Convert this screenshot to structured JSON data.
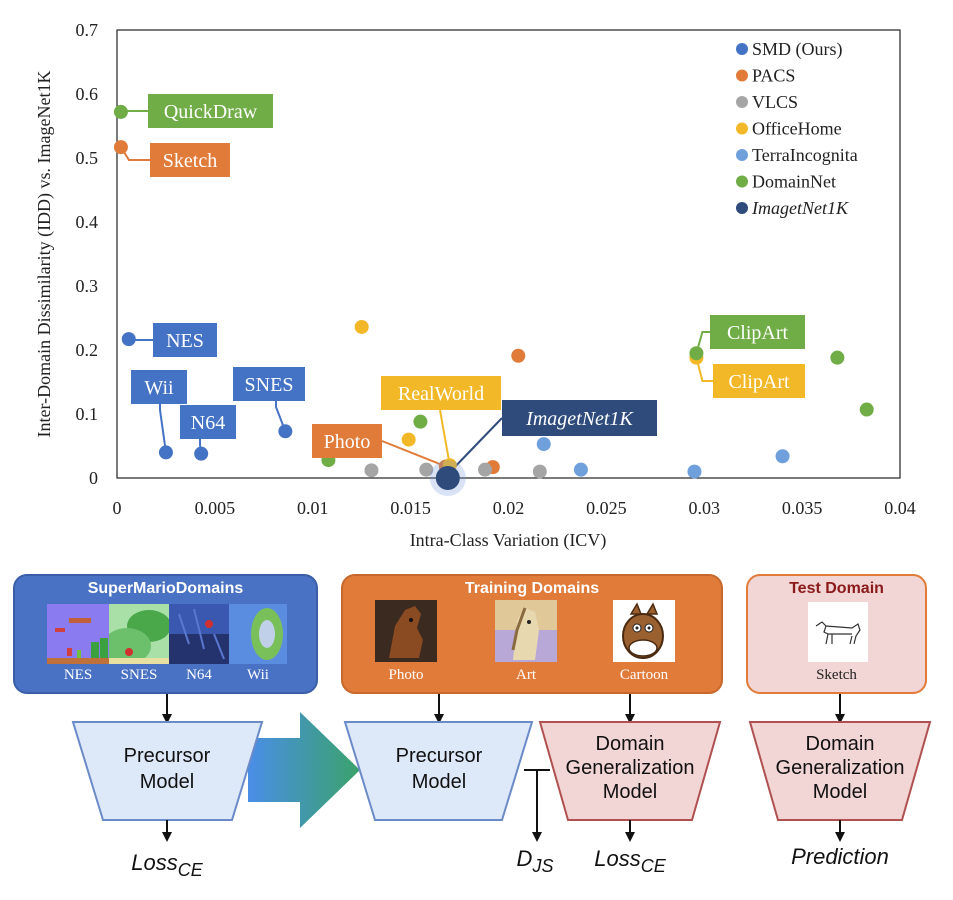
{
  "chart_data": {
    "type": "scatter",
    "xlabel": "Intra-Class Variation (ICV)",
    "ylabel": "Inter-Domain Dissimilarity (IDD) vs. ImageNet1K",
    "xlim": [
      0,
      0.04
    ],
    "ylim": [
      0,
      0.7
    ],
    "x_ticks": [
      0,
      0.005,
      0.01,
      0.015,
      0.02,
      0.025,
      0.03,
      0.035,
      0.04
    ],
    "x_tick_labels": [
      "0",
      "0.005",
      "0.01",
      "0.015",
      "0.02",
      "0.025",
      "0.03",
      "0.035",
      "0.04"
    ],
    "y_ticks": [
      0,
      0.1,
      0.2,
      0.3,
      0.4,
      0.5,
      0.6,
      0.7
    ],
    "y_tick_labels": [
      "0",
      "0.1",
      "0.2",
      "0.3",
      "0.4",
      "0.5",
      "0.6",
      "0.7"
    ],
    "grid": false,
    "legend_position": "top-right",
    "series": [
      {
        "name": "SMD (Ours)",
        "color": "#4472c4",
        "points": [
          [
            0.0006,
            0.217
          ],
          [
            0.0025,
            0.04
          ],
          [
            0.0043,
            0.038
          ],
          [
            0.0086,
            0.073
          ]
        ]
      },
      {
        "name": "PACS",
        "color": "#e07b39",
        "points": [
          [
            0.0002,
            0.517
          ],
          [
            0.0168,
            0.018
          ],
          [
            0.0192,
            0.017
          ],
          [
            0.0205,
            0.191
          ]
        ]
      },
      {
        "name": "VLCS",
        "color": "#a5a5a5",
        "points": [
          [
            0.013,
            0.012
          ],
          [
            0.0158,
            0.013
          ],
          [
            0.0188,
            0.013
          ],
          [
            0.0216,
            0.01
          ]
        ]
      },
      {
        "name": "OfficeHome",
        "color": "#f2b827",
        "points": [
          [
            0.0125,
            0.236
          ],
          [
            0.0149,
            0.06
          ],
          [
            0.017,
            0.02
          ],
          [
            0.0296,
            0.188
          ]
        ]
      },
      {
        "name": "TerraIncognita",
        "color": "#6fa0dc",
        "points": [
          [
            0.0218,
            0.053
          ],
          [
            0.0237,
            0.013
          ],
          [
            0.0295,
            0.01
          ],
          [
            0.034,
            0.034
          ]
        ]
      },
      {
        "name": "DomainNet",
        "color": "#70ad47",
        "points": [
          [
            0.0002,
            0.572
          ],
          [
            0.0108,
            0.028
          ],
          [
            0.0155,
            0.088
          ],
          [
            0.0296,
            0.195
          ],
          [
            0.0368,
            0.188
          ],
          [
            0.0383,
            0.107
          ]
        ]
      },
      {
        "name": "ImagetNet1K",
        "color": "#2e4b7c",
        "points": [
          [
            0.0169,
            0.0
          ]
        ]
      }
    ],
    "annotations": [
      {
        "text": "QuickDraw",
        "color": "#70ad47"
      },
      {
        "text": "Sketch",
        "color": "#e07b39"
      },
      {
        "text": "NES",
        "color": "#4472c4"
      },
      {
        "text": "Wii",
        "color": "#4472c4"
      },
      {
        "text": "N64",
        "color": "#4472c4"
      },
      {
        "text": "SNES",
        "color": "#4472c4"
      },
      {
        "text": "Photo",
        "color": "#e07b39"
      },
      {
        "text": "RealWorld",
        "color": "#f2b827"
      },
      {
        "text": "ImagetNet1K",
        "color": "#2e4b7c"
      },
      {
        "text": "ClipArt",
        "color": "#70ad47"
      },
      {
        "text": "ClipArt",
        "color": "#f2b827"
      }
    ]
  },
  "diagram": {
    "smd": {
      "title": "SuperMarioDomains",
      "labels": [
        "NES",
        "SNES",
        "N64",
        "Wii"
      ]
    },
    "training": {
      "title": "Training Domains",
      "labels": [
        "Photo",
        "Art",
        "Cartoon"
      ]
    },
    "test": {
      "title": "Test Domain",
      "labels": [
        "Sketch"
      ]
    },
    "models": {
      "precursor_1": [
        "Precursor",
        "Model"
      ],
      "precursor_2": [
        "Precursor",
        "Model"
      ],
      "dg_1": [
        "Domain",
        "Generalization",
        "Model"
      ],
      "dg_2": [
        "Domain",
        "Generalization",
        "Model"
      ]
    },
    "outputs": {
      "loss_ce_left": {
        "main": "Loss",
        "sub": "CE"
      },
      "djs": {
        "main": "D",
        "sub": "JS"
      },
      "loss_ce_right": {
        "main": "Loss",
        "sub": "CE"
      },
      "prediction": "Prediction"
    }
  }
}
